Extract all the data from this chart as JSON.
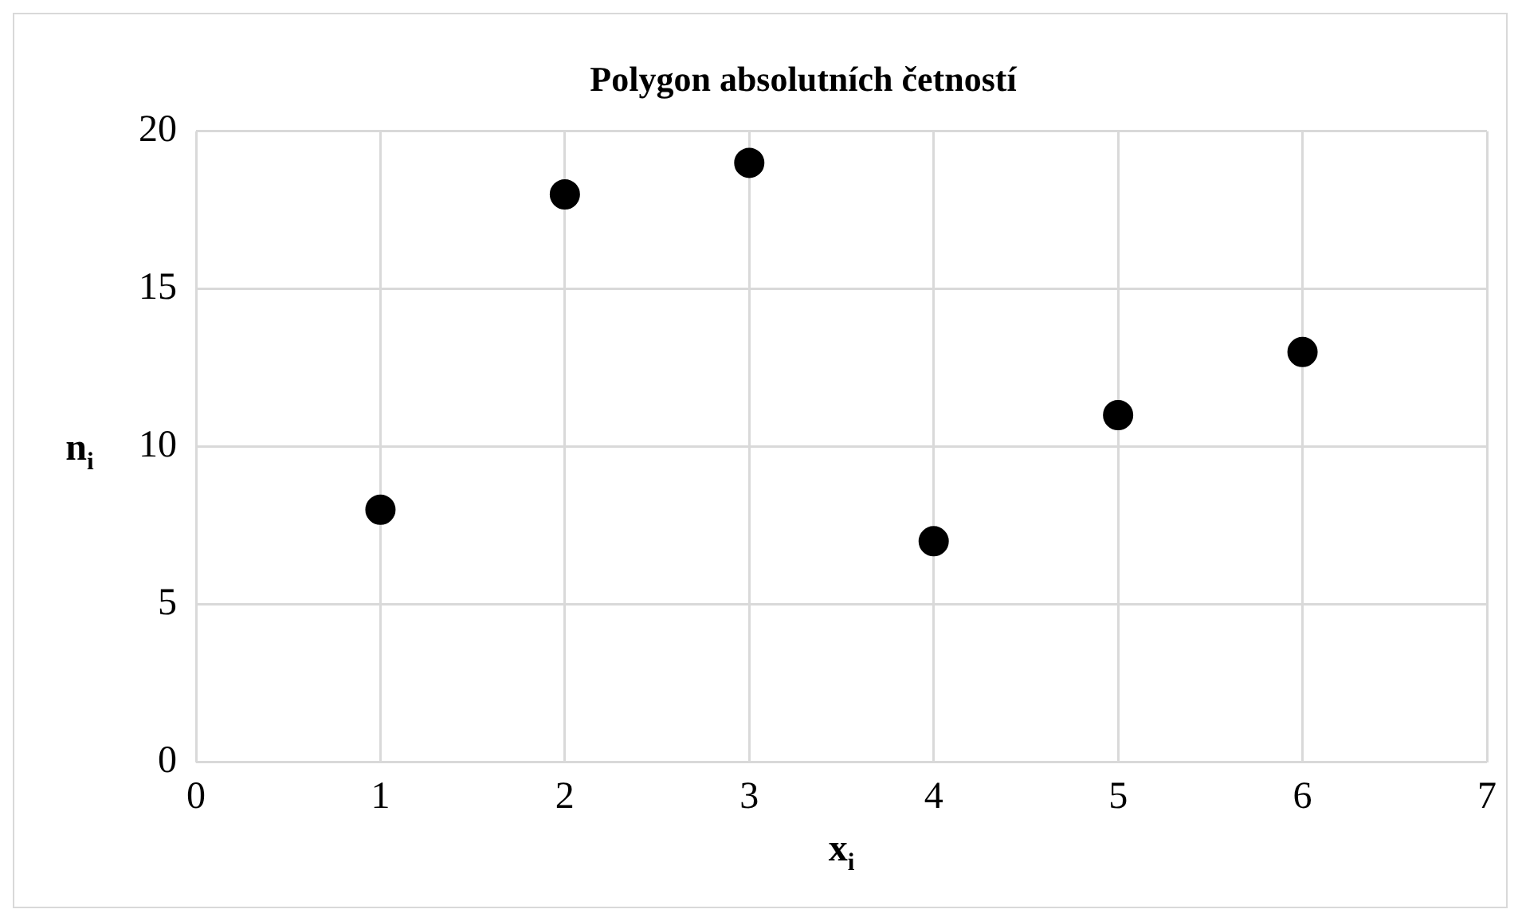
{
  "chart_data": {
    "type": "scatter",
    "title": "Polygon absolutních četností",
    "xlabel": "x$_{i}$",
    "ylabel": "n$_{i}$",
    "x": [
      1,
      2,
      3,
      4,
      5,
      6
    ],
    "series": [
      {
        "color": "#000000",
        "values": [
          8,
          18,
          19,
          7,
          11,
          13
        ]
      }
    ],
    "xlim": [
      0,
      7
    ],
    "ylim": [
      0,
      20
    ],
    "xticks": [
      0,
      1,
      2,
      3,
      4,
      5,
      6,
      7
    ],
    "yticks": [
      0,
      5,
      10,
      15,
      20
    ],
    "grid": true,
    "marker": "circle"
  }
}
